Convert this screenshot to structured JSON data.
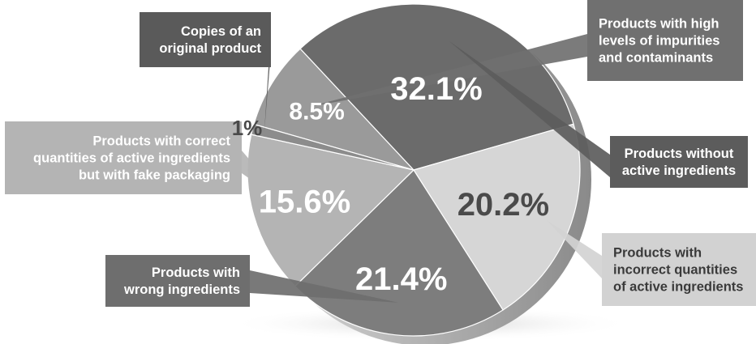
{
  "chart_data": {
    "type": "pie",
    "slices": [
      {
        "label": "Products with high levels of impurities and contaminants",
        "value": 8.5,
        "color": "#9a9a9a"
      },
      {
        "label": "Products without active ingredients",
        "value": 32.1,
        "color": "#6b6b6b"
      },
      {
        "label": "Products with incorrect quantities of active ingredients",
        "value": 20.2,
        "color": "#d6d6d6"
      },
      {
        "label": "Products with wrong ingredients",
        "value": 21.4,
        "color": "#7d7d7d"
      },
      {
        "label": "Products with correct quantities of active ingredients but with fake packaging",
        "value": 15.6,
        "color": "#b4b4b4"
      },
      {
        "label": "Copies of an original product",
        "value": 1,
        "color": "#8c8c8c"
      }
    ],
    "value_labels": [
      "8.5%",
      "32.1%",
      "20.2%",
      "21.4%",
      "15.6%",
      "1%"
    ],
    "legend_lines": [
      [
        "Products with high",
        "levels of impurities",
        "and contaminants"
      ],
      [
        "Products without",
        "active ingredients"
      ],
      [
        "Products with",
        "incorrect quantities",
        "of active ingredients"
      ],
      [
        "Products with",
        "wrong ingredients"
      ],
      [
        "Products with correct",
        "quantities of active ingredients",
        "but with fake packaging"
      ],
      [
        "Copies of an",
        "original product"
      ]
    ]
  }
}
